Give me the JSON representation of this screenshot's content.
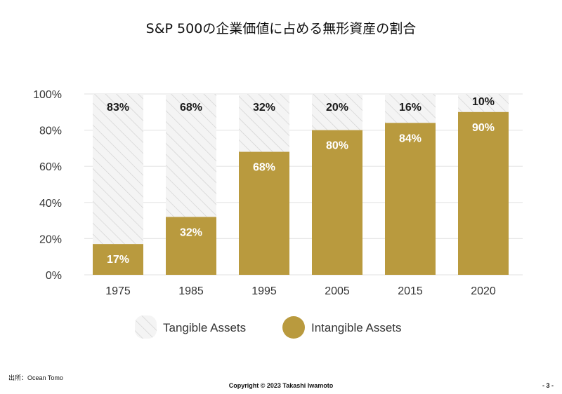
{
  "title": "S&P 500の企業価値に占める無形資産の割合",
  "source": "出所：Ocean Tomo",
  "copyright": "Copyright © 2023 Takashi Iwamoto",
  "page_number": "- 3 -",
  "colors": {
    "intangible": "#B99A3E",
    "tangible_hatch": "#CFCFCF",
    "tangible_bg": "#F2F2F2",
    "grid": "#E6E6E6",
    "label_dark": "#1a1a1a",
    "label_light": "#ffffff"
  },
  "chart_data": {
    "type": "bar",
    "stacked": true,
    "categories": [
      "1975",
      "1985",
      "1995",
      "2005",
      "2015",
      "2020"
    ],
    "series": [
      {
        "name": "Intangible Assets",
        "values": [
          17,
          32,
          68,
          80,
          84,
          90
        ],
        "labels": [
          "17%",
          "32%",
          "68%",
          "80%",
          "84%",
          "90%"
        ]
      },
      {
        "name": "Tangible Assets",
        "values": [
          83,
          68,
          32,
          20,
          16,
          10
        ],
        "labels": [
          "83%",
          "68%",
          "32%",
          "20%",
          "16%",
          "10%"
        ]
      }
    ],
    "ylim": [
      0,
      100
    ],
    "yticks": [
      "0%",
      "20%",
      "40%",
      "60%",
      "80%",
      "100%"
    ],
    "grid": true,
    "legend_position": "bottom"
  }
}
